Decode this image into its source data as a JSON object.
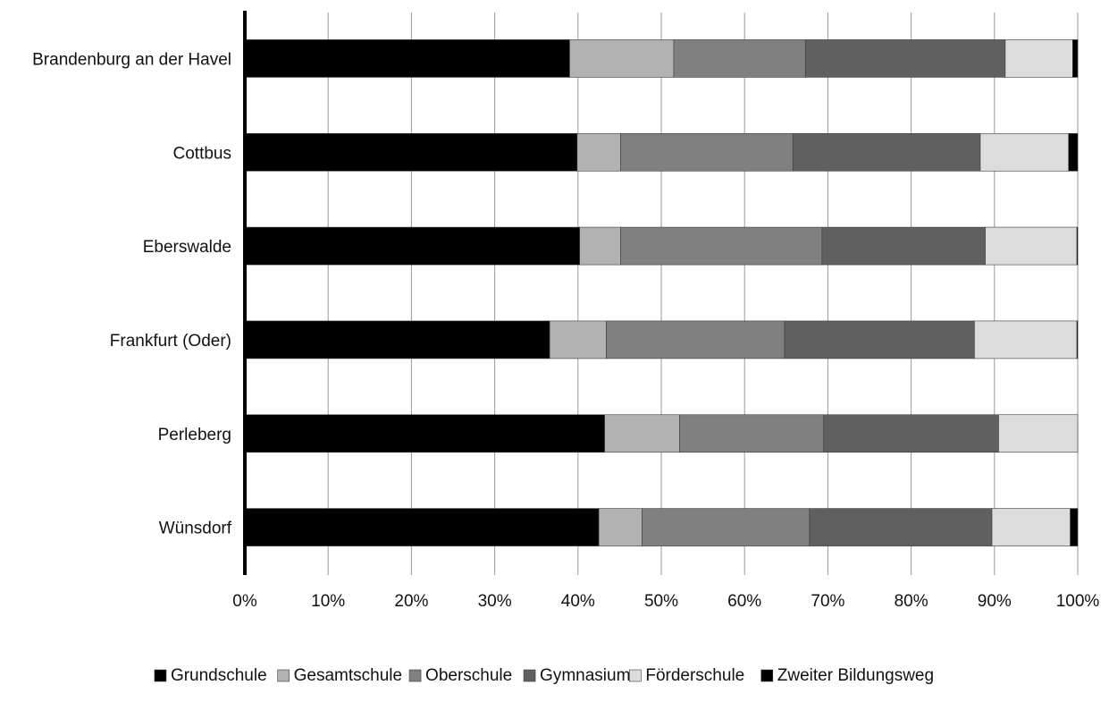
{
  "chart_data": {
    "type": "bar",
    "orientation": "horizontal",
    "stacked": true,
    "normalized_percent": true,
    "title": "",
    "xlabel": "",
    "ylabel": "",
    "xlim": [
      0,
      100
    ],
    "x_ticks": [
      "0%",
      "10%",
      "20%",
      "30%",
      "40%",
      "50%",
      "60%",
      "70%",
      "80%",
      "90%",
      "100%"
    ],
    "grid": {
      "vertical": true,
      "horizontal": false
    },
    "legend_position": "bottom",
    "categories": [
      "Brandenburg an der Havel",
      "Cottbus",
      "Eberswalde",
      "Frankfurt (Oder)",
      "Perleberg",
      "Wünsdorf"
    ],
    "series": [
      {
        "name": "Grundschule",
        "color": "#000000",
        "values": [
          39.0,
          39.9,
          40.2,
          36.6,
          43.2,
          42.5
        ]
      },
      {
        "name": "Gesamtschule",
        "color": "#b2b2b2",
        "values": [
          12.5,
          5.2,
          4.9,
          6.8,
          9.0,
          5.2
        ]
      },
      {
        "name": "Oberschule",
        "color": "#808080",
        "values": [
          15.8,
          20.7,
          24.2,
          21.4,
          17.3,
          20.1
        ]
      },
      {
        "name": "Gymnasium",
        "color": "#606060",
        "values": [
          24.0,
          22.5,
          19.6,
          22.8,
          21.0,
          21.9
        ]
      },
      {
        "name": "Förderschule",
        "color": "#dcdcdc",
        "values": [
          8.1,
          10.6,
          11.0,
          12.3,
          9.5,
          9.4
        ]
      },
      {
        "name": "Zweiter Bildungsweg",
        "color": "#000000",
        "values": [
          0.6,
          1.1,
          0.1,
          0.1,
          0.0,
          0.9
        ]
      }
    ]
  }
}
